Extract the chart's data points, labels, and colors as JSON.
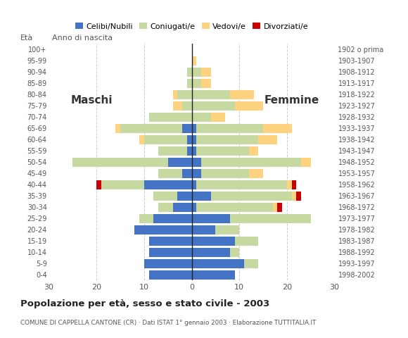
{
  "age_groups": [
    "0-4",
    "5-9",
    "10-14",
    "15-19",
    "20-24",
    "25-29",
    "30-34",
    "35-39",
    "40-44",
    "45-49",
    "50-54",
    "55-59",
    "60-64",
    "65-69",
    "70-74",
    "75-79",
    "80-84",
    "85-89",
    "90-94",
    "95-99",
    "100+"
  ],
  "birth_years": [
    "1998-2002",
    "1993-1997",
    "1988-1992",
    "1983-1987",
    "1978-1982",
    "1973-1977",
    "1968-1972",
    "1963-1967",
    "1958-1962",
    "1953-1957",
    "1948-1952",
    "1943-1947",
    "1938-1942",
    "1933-1937",
    "1928-1932",
    "1923-1927",
    "1918-1922",
    "1913-1917",
    "1908-1912",
    "1903-1907",
    "1902 o prima"
  ],
  "colors": {
    "celibe": "#4472c4",
    "coniugato": "#c5d9a0",
    "vedovo": "#ffd280",
    "divorziato": "#cc0000"
  },
  "males": {
    "celibe": [
      9,
      10,
      9,
      9,
      12,
      8,
      4,
      3,
      10,
      2,
      5,
      1,
      1,
      2,
      0,
      0,
      0,
      0,
      0,
      0,
      0
    ],
    "coniugato": [
      0,
      0,
      0,
      0,
      0,
      3,
      3,
      5,
      9,
      5,
      20,
      6,
      9,
      13,
      9,
      2,
      3,
      1,
      1,
      0,
      0
    ],
    "vedovo": [
      0,
      0,
      0,
      0,
      0,
      0,
      0,
      0,
      0,
      0,
      0,
      0,
      1,
      1,
      0,
      2,
      1,
      0,
      0,
      0,
      0
    ],
    "divorziato": [
      0,
      0,
      0,
      0,
      0,
      0,
      0,
      0,
      1,
      0,
      0,
      0,
      0,
      0,
      0,
      0,
      0,
      0,
      0,
      0,
      0
    ]
  },
  "females": {
    "celibe": [
      9,
      11,
      8,
      9,
      5,
      8,
      1,
      4,
      1,
      2,
      2,
      1,
      1,
      1,
      0,
      0,
      0,
      0,
      0,
      0,
      0
    ],
    "coniugato": [
      0,
      3,
      2,
      5,
      5,
      17,
      16,
      17,
      19,
      10,
      21,
      11,
      13,
      14,
      4,
      9,
      8,
      2,
      2,
      0,
      0
    ],
    "vedovo": [
      0,
      0,
      0,
      0,
      0,
      0,
      1,
      1,
      1,
      3,
      2,
      2,
      4,
      6,
      3,
      6,
      5,
      2,
      2,
      1,
      0
    ],
    "divorziato": [
      0,
      0,
      0,
      0,
      0,
      0,
      1,
      1,
      1,
      0,
      0,
      0,
      0,
      0,
      0,
      0,
      0,
      0,
      0,
      0,
      0
    ]
  },
  "xlim": 30,
  "title": "Popolazione per età, sesso e stato civile - 2003",
  "subtitle": "COMUNE DI CAPPELLA CANTONE (CR) · Dati ISTAT 1° gennaio 2003 · Elaborazione TUTTITALIA.IT",
  "xlabel_left": "Maschi",
  "xlabel_right": "Femmine",
  "ylabel_left": "Età",
  "ylabel_right": "Anno di nascita",
  "legend_labels": [
    "Celibi/Nubili",
    "Coniugati/e",
    "Vedovi/e",
    "Divorziati/e"
  ],
  "bg_color": "#ffffff",
  "grid_color": "#cccccc"
}
